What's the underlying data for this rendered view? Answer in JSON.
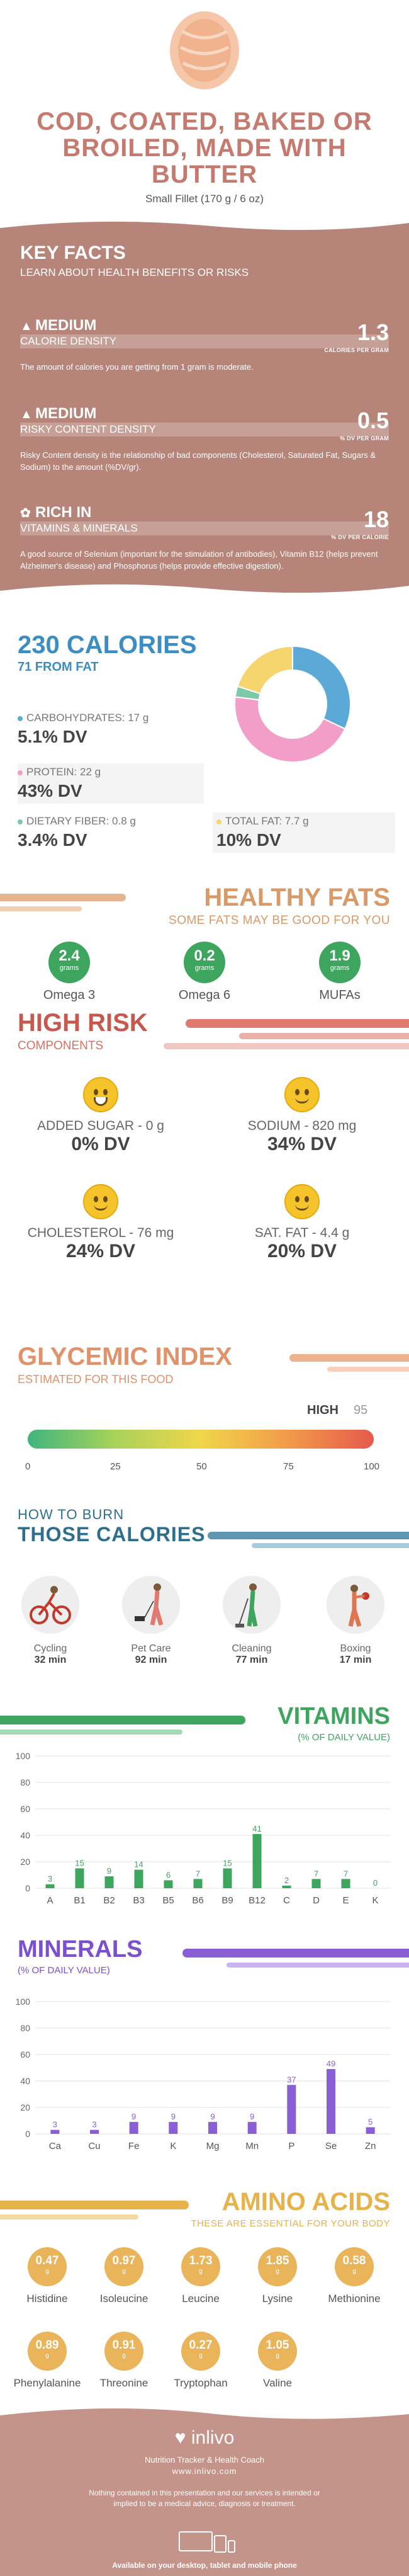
{
  "header": {
    "title_line1": "COD, COATED, BAKED OR",
    "title_line2": "BROILED, MADE WITH",
    "title_line3": "BUTTER",
    "serving": "Small Fillet (170 g / 6 oz)",
    "image_icon": "fish-fillet-icon"
  },
  "key_facts": {
    "title": "KEY FACTS",
    "subtitle": "LEARN ABOUT HEALTH BENEFITS OR RISKS",
    "items": [
      {
        "level": "MEDIUM",
        "category": "CALORIE DENSITY",
        "value": "1.3",
        "unit": "CALORIES PER GRAM",
        "icon": "flame-icon",
        "description": "The amount of calories you are getting from 1 gram is moderate."
      },
      {
        "level": "MEDIUM",
        "category": "RISKY CONTENT DENSITY",
        "value": "0.5",
        "unit": "% DV PER GRAM",
        "icon": "warning-icon",
        "description": "Risky Content density is the relationship of bad components (Cholesterol, Saturated Fat, Sugars & Sodium) to the amount (%DV/gr)."
      },
      {
        "level": "RICH IN",
        "category": "VITAMINS & MINERALS",
        "value": "18",
        "unit": "% DV PER CALORIE",
        "icon": "leaf-icon",
        "description": "A good source of Selenium (important for the stimulation of antibodies), Vitamin B12 (helps prevent Alzheimer's disease) and Phosphorus (helps provide effective digestion)."
      }
    ]
  },
  "calories": {
    "title": "230 CALORIES",
    "subtitle": "71 FROM FAT",
    "nutrients": [
      {
        "label": "CARBOHYDRATES: 17 g",
        "value": "5.1% DV",
        "color": "#5aa9d6"
      },
      {
        "label": "PROTEIN: 22 g",
        "value": "43% DV",
        "color": "#f29ec8"
      },
      {
        "label": "DIETARY FIBER: 0.8 g",
        "value": "3.4% DV",
        "color": "#7cc8a8"
      },
      {
        "label": "TOTAL FAT: 7.7 g",
        "value": "10% DV",
        "color": "#f7d56e"
      }
    ]
  },
  "chart_data": [
    {
      "type": "pie",
      "categories": [
        "Carbohydrates",
        "Protein",
        "Dietary Fiber",
        "Total Fat"
      ],
      "values": [
        32,
        45,
        3,
        20
      ],
      "colors": [
        "#5aa9d6",
        "#f29ec8",
        "#7cc8a8",
        "#f7d56e"
      ]
    },
    {
      "type": "bar",
      "title": "VITAMINS",
      "subtitle": "(% OF DAILY VALUE)",
      "categories": [
        "A",
        "B1",
        "B2",
        "B3",
        "B5",
        "B6",
        "B9",
        "B12",
        "C",
        "D",
        "E",
        "K"
      ],
      "values": [
        3,
        15,
        9,
        14,
        6,
        7,
        15,
        41,
        2,
        7,
        7,
        0
      ],
      "ylim": [
        0,
        100
      ],
      "yticks": [
        "0",
        "20",
        "40",
        "60",
        "80",
        "100"
      ],
      "color": "#3ea55f"
    },
    {
      "type": "bar",
      "title": "MINERALS",
      "subtitle": "(% OF DAILY VALUE)",
      "categories": [
        "Ca",
        "Cu",
        "Fe",
        "K",
        "Mg",
        "Mn",
        "P",
        "Se",
        "Zn"
      ],
      "values": [
        3,
        3,
        9,
        9,
        9,
        9,
        37,
        49,
        5
      ],
      "ylim": [
        0,
        100
      ],
      "yticks": [
        "0",
        "20",
        "40",
        "60",
        "80",
        "100"
      ],
      "color": "#8a5fd6"
    }
  ],
  "fats": {
    "title": "HEALTHY FATS",
    "subtitle": "SOME FATS MAY BE GOOD FOR YOU",
    "items": [
      {
        "value": "2.4",
        "unit": "grams",
        "name": "Omega 3"
      },
      {
        "value": "0.2",
        "unit": "grams",
        "name": "Omega 6"
      },
      {
        "value": "1.9",
        "unit": "grams",
        "name": "MUFAs"
      }
    ]
  },
  "risk": {
    "title": "HIGH RISK",
    "subtitle": "COMPONENTS",
    "items": [
      {
        "label": "ADDED SUGAR - 0 g",
        "value": "0% DV",
        "face": "grin-face-icon"
      },
      {
        "label": "SODIUM - 820 mg",
        "value": "34% DV",
        "face": "smile-face-icon"
      },
      {
        "label": "CHOLESTEROL - 76 mg",
        "value": "24% DV",
        "face": "smile-face-icon"
      },
      {
        "label": "SAT. FAT - 4.4 g",
        "value": "20% DV",
        "face": "smile-face-icon"
      }
    ]
  },
  "glycemic": {
    "title": "GLYCEMIC INDEX",
    "subtitle": "ESTIMATED FOR THIS FOOD",
    "level": "HIGH",
    "value": "95",
    "ticks": [
      "0",
      "25",
      "50",
      "75",
      "100"
    ]
  },
  "burn": {
    "title_line1": "HOW TO BURN",
    "title_line2": "THOSE CALORIES",
    "activities": [
      {
        "name": "Cycling",
        "minutes": "32 min",
        "icon": "cycling-icon"
      },
      {
        "name": "Pet Care",
        "minutes": "92 min",
        "icon": "dog-walking-icon"
      },
      {
        "name": "Cleaning",
        "minutes": "77 min",
        "icon": "cleaning-icon"
      },
      {
        "name": "Boxing",
        "minutes": "17 min",
        "icon": "boxing-icon"
      }
    ]
  },
  "amino": {
    "title": "AMINO ACIDS",
    "subtitle": "THESE ARE ESSENTIAL FOR YOUR BODY",
    "items": [
      {
        "value": "0.47",
        "unit": "g",
        "name": "Histidine"
      },
      {
        "value": "0.97",
        "unit": "g",
        "name": "Isoleucine"
      },
      {
        "value": "1.73",
        "unit": "g",
        "name": "Leucine"
      },
      {
        "value": "1.85",
        "unit": "g",
        "name": "Lysine"
      },
      {
        "value": "0.58",
        "unit": "g",
        "name": "Methionine"
      },
      {
        "value": "0.89",
        "unit": "g",
        "name": "Phenylalanine"
      },
      {
        "value": "0.91",
        "unit": "g",
        "name": "Threonine"
      },
      {
        "value": "0.27",
        "unit": "g",
        "name": "Tryptophan"
      },
      {
        "value": "1.05",
        "unit": "g",
        "name": "Valine"
      }
    ]
  },
  "footer": {
    "logo": "inlivo",
    "tagline": "Nutrition Tracker & Health Coach",
    "url": "www.inlivo.com",
    "disclaimer": "Nothing contained in this presentation and our services is intended or implied to be a medical advice, diagnosis or treatment.",
    "available": "Available on your desktop, tablet and mobile phone"
  }
}
